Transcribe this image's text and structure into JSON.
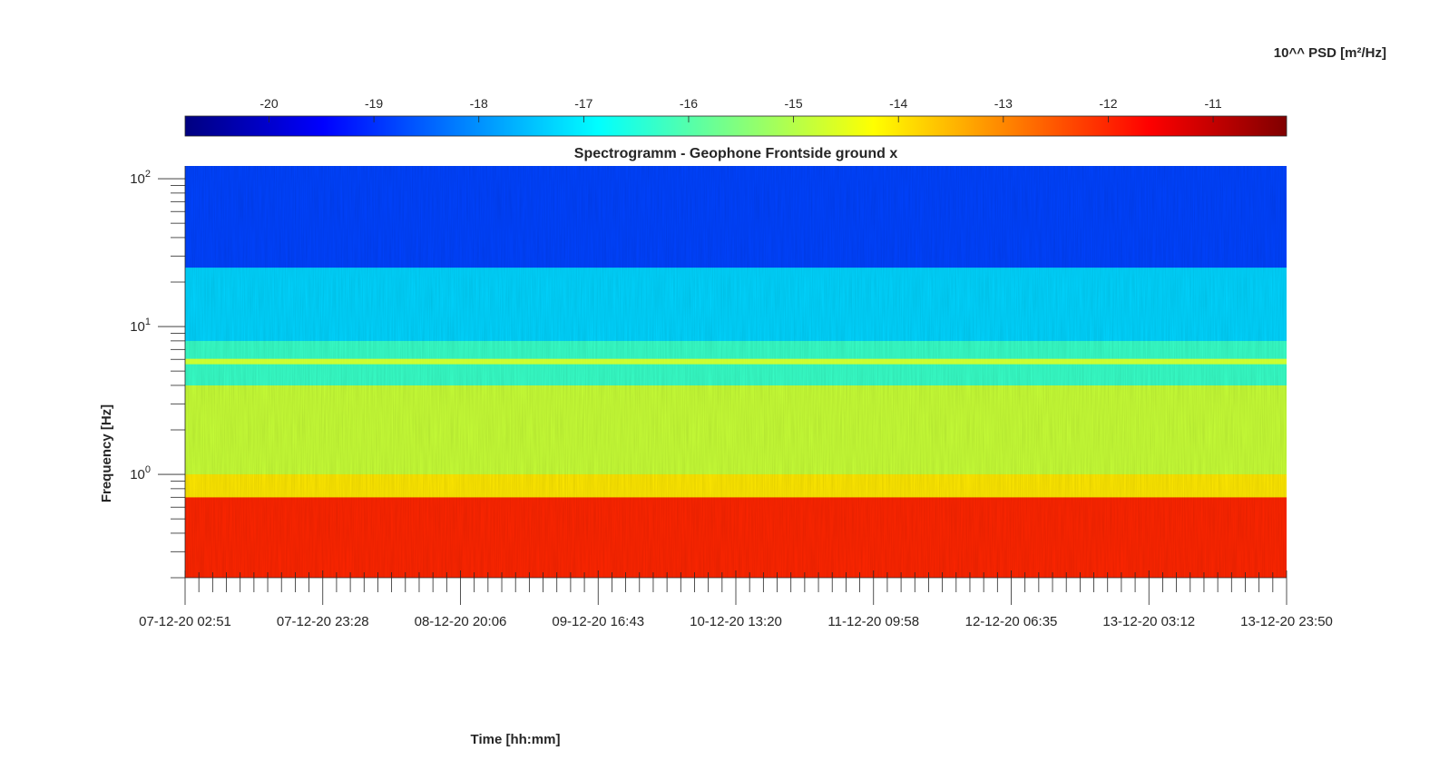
{
  "chart_data": {
    "type": "heatmap",
    "title": "Spectrogramm - Geophone Frontside ground x",
    "xlabel": "Time [hh:mm]",
    "ylabel": "Frequency [Hz]",
    "colorbar_label": "10^^ PSD [m²/Hz]",
    "colormap": "jet",
    "colorbar_range": [
      -20.8,
      -10.3
    ],
    "colorbar_ticks": [
      "-20",
      "-19",
      "-18",
      "-17",
      "-16",
      "-15",
      "-14",
      "-13",
      "-12",
      "-11"
    ],
    "x_ticks": [
      "07-12-20 02:51",
      "07-12-20 23:28",
      "08-12-20 20:06",
      "09-12-20 16:43",
      "10-12-20 13:20",
      "11-12-20 09:58",
      "12-12-20 06:35",
      "13-12-20 03:12",
      "13-12-20 23:50"
    ],
    "y_scale": "log",
    "ylim": [
      0.2,
      122
    ],
    "y_ticks": [
      {
        "mantissa": "10",
        "exp": "2"
      },
      {
        "mantissa": "10",
        "exp": "1"
      },
      {
        "mantissa": "10",
        "exp": "0"
      }
    ],
    "bands": [
      {
        "f_low": 0.2,
        "f_high": 0.7,
        "psd": -12.0
      },
      {
        "f_low": 0.7,
        "f_high": 1.0,
        "psd": -14.0
      },
      {
        "f_low": 1.0,
        "f_high": 4.0,
        "psd": -14.8
      },
      {
        "f_low": 4.0,
        "f_high": 8.0,
        "psd": -16.3
      },
      {
        "f_low": 8.0,
        "f_high": 25.0,
        "psd": -17.3
      },
      {
        "f_low": 25.0,
        "f_high": 122.0,
        "psd": -18.8
      }
    ],
    "line_peak": {
      "frequency": 5.8,
      "psd": -14.5
    },
    "grid": false,
    "legend": "colorbar-top"
  }
}
